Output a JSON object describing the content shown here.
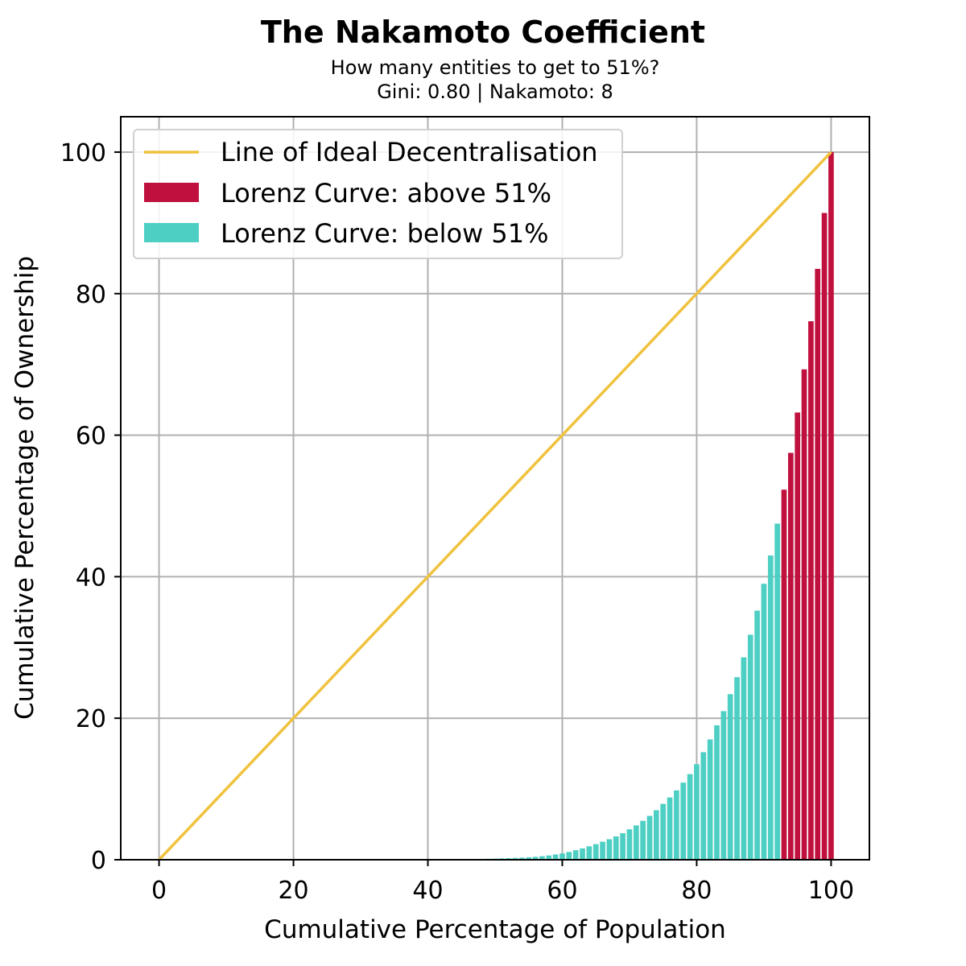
{
  "chart_data": {
    "type": "bar",
    "title": "The Nakamoto Coefficient",
    "subtitle_lines": [
      "How many entities to get to 51%?",
      "Gini: 0.80 | Nakamoto: 8"
    ],
    "xlabel": "Cumulative Percentage of Population",
    "ylabel": "Cumulative Percentage of Ownership",
    "xlim": [
      -5.7,
      105.7
    ],
    "ylim": [
      0,
      105
    ],
    "xticks": [
      0,
      20,
      40,
      60,
      80,
      100
    ],
    "yticks": [
      0,
      20,
      40,
      60,
      80,
      100
    ],
    "xtick_labels": [
      "0",
      "20",
      "40",
      "60",
      "80",
      "100"
    ],
    "ytick_labels": [
      "0",
      "20",
      "40",
      "60",
      "80",
      "100"
    ],
    "grid": true,
    "legend_position": "upper-left",
    "colors": {
      "ideal_line": "#f0c23d",
      "above": "#c0103e",
      "below": "#4ecfc4"
    },
    "legend": [
      {
        "label": "Line of Ideal Decentralisation",
        "kind": "line",
        "color": "#f0c23d"
      },
      {
        "label": "Lorenz Curve: above 51%",
        "kind": "patch",
        "color": "#c0103e"
      },
      {
        "label": "Lorenz Curve: below 51%",
        "kind": "patch",
        "color": "#4ecfc4"
      }
    ],
    "ideal_line": {
      "x": [
        0,
        100
      ],
      "y": [
        0,
        100
      ]
    },
    "series": [
      {
        "name": "Lorenz Curve: below 51%",
        "x": [
          43,
          44,
          45,
          46,
          47,
          48,
          49,
          50,
          51,
          52,
          53,
          54,
          55,
          56,
          57,
          58,
          59,
          60,
          61,
          62,
          63,
          64,
          65,
          66,
          67,
          68,
          69,
          70,
          71,
          72,
          73,
          74,
          75,
          76,
          77,
          78,
          79,
          80,
          81,
          82,
          83,
          84,
          85,
          86,
          87,
          88,
          89,
          90,
          91,
          92
        ],
        "y": [
          0.05,
          0.06,
          0.07,
          0.08,
          0.1,
          0.12,
          0.14,
          0.16,
          0.19,
          0.22,
          0.26,
          0.3,
          0.35,
          0.41,
          0.5,
          0.6,
          0.75,
          0.9,
          1.1,
          1.35,
          1.6,
          1.9,
          2.2,
          2.55,
          2.9,
          3.3,
          3.75,
          4.3,
          4.85,
          5.5,
          6.2,
          7.0,
          7.9,
          8.8,
          9.8,
          10.9,
          12.1,
          13.5,
          15.2,
          17.0,
          19.0,
          21.0,
          23.4,
          25.8,
          28.6,
          31.8,
          35.2,
          39.0,
          43.0,
          47.5
        ]
      },
      {
        "name": "Lorenz Curve: above 51%",
        "x": [
          93,
          94,
          95,
          96,
          97,
          98,
          99,
          100
        ],
        "y": [
          52.3,
          57.5,
          63.2,
          69.3,
          76.1,
          83.5,
          91.4,
          100
        ]
      }
    ]
  }
}
